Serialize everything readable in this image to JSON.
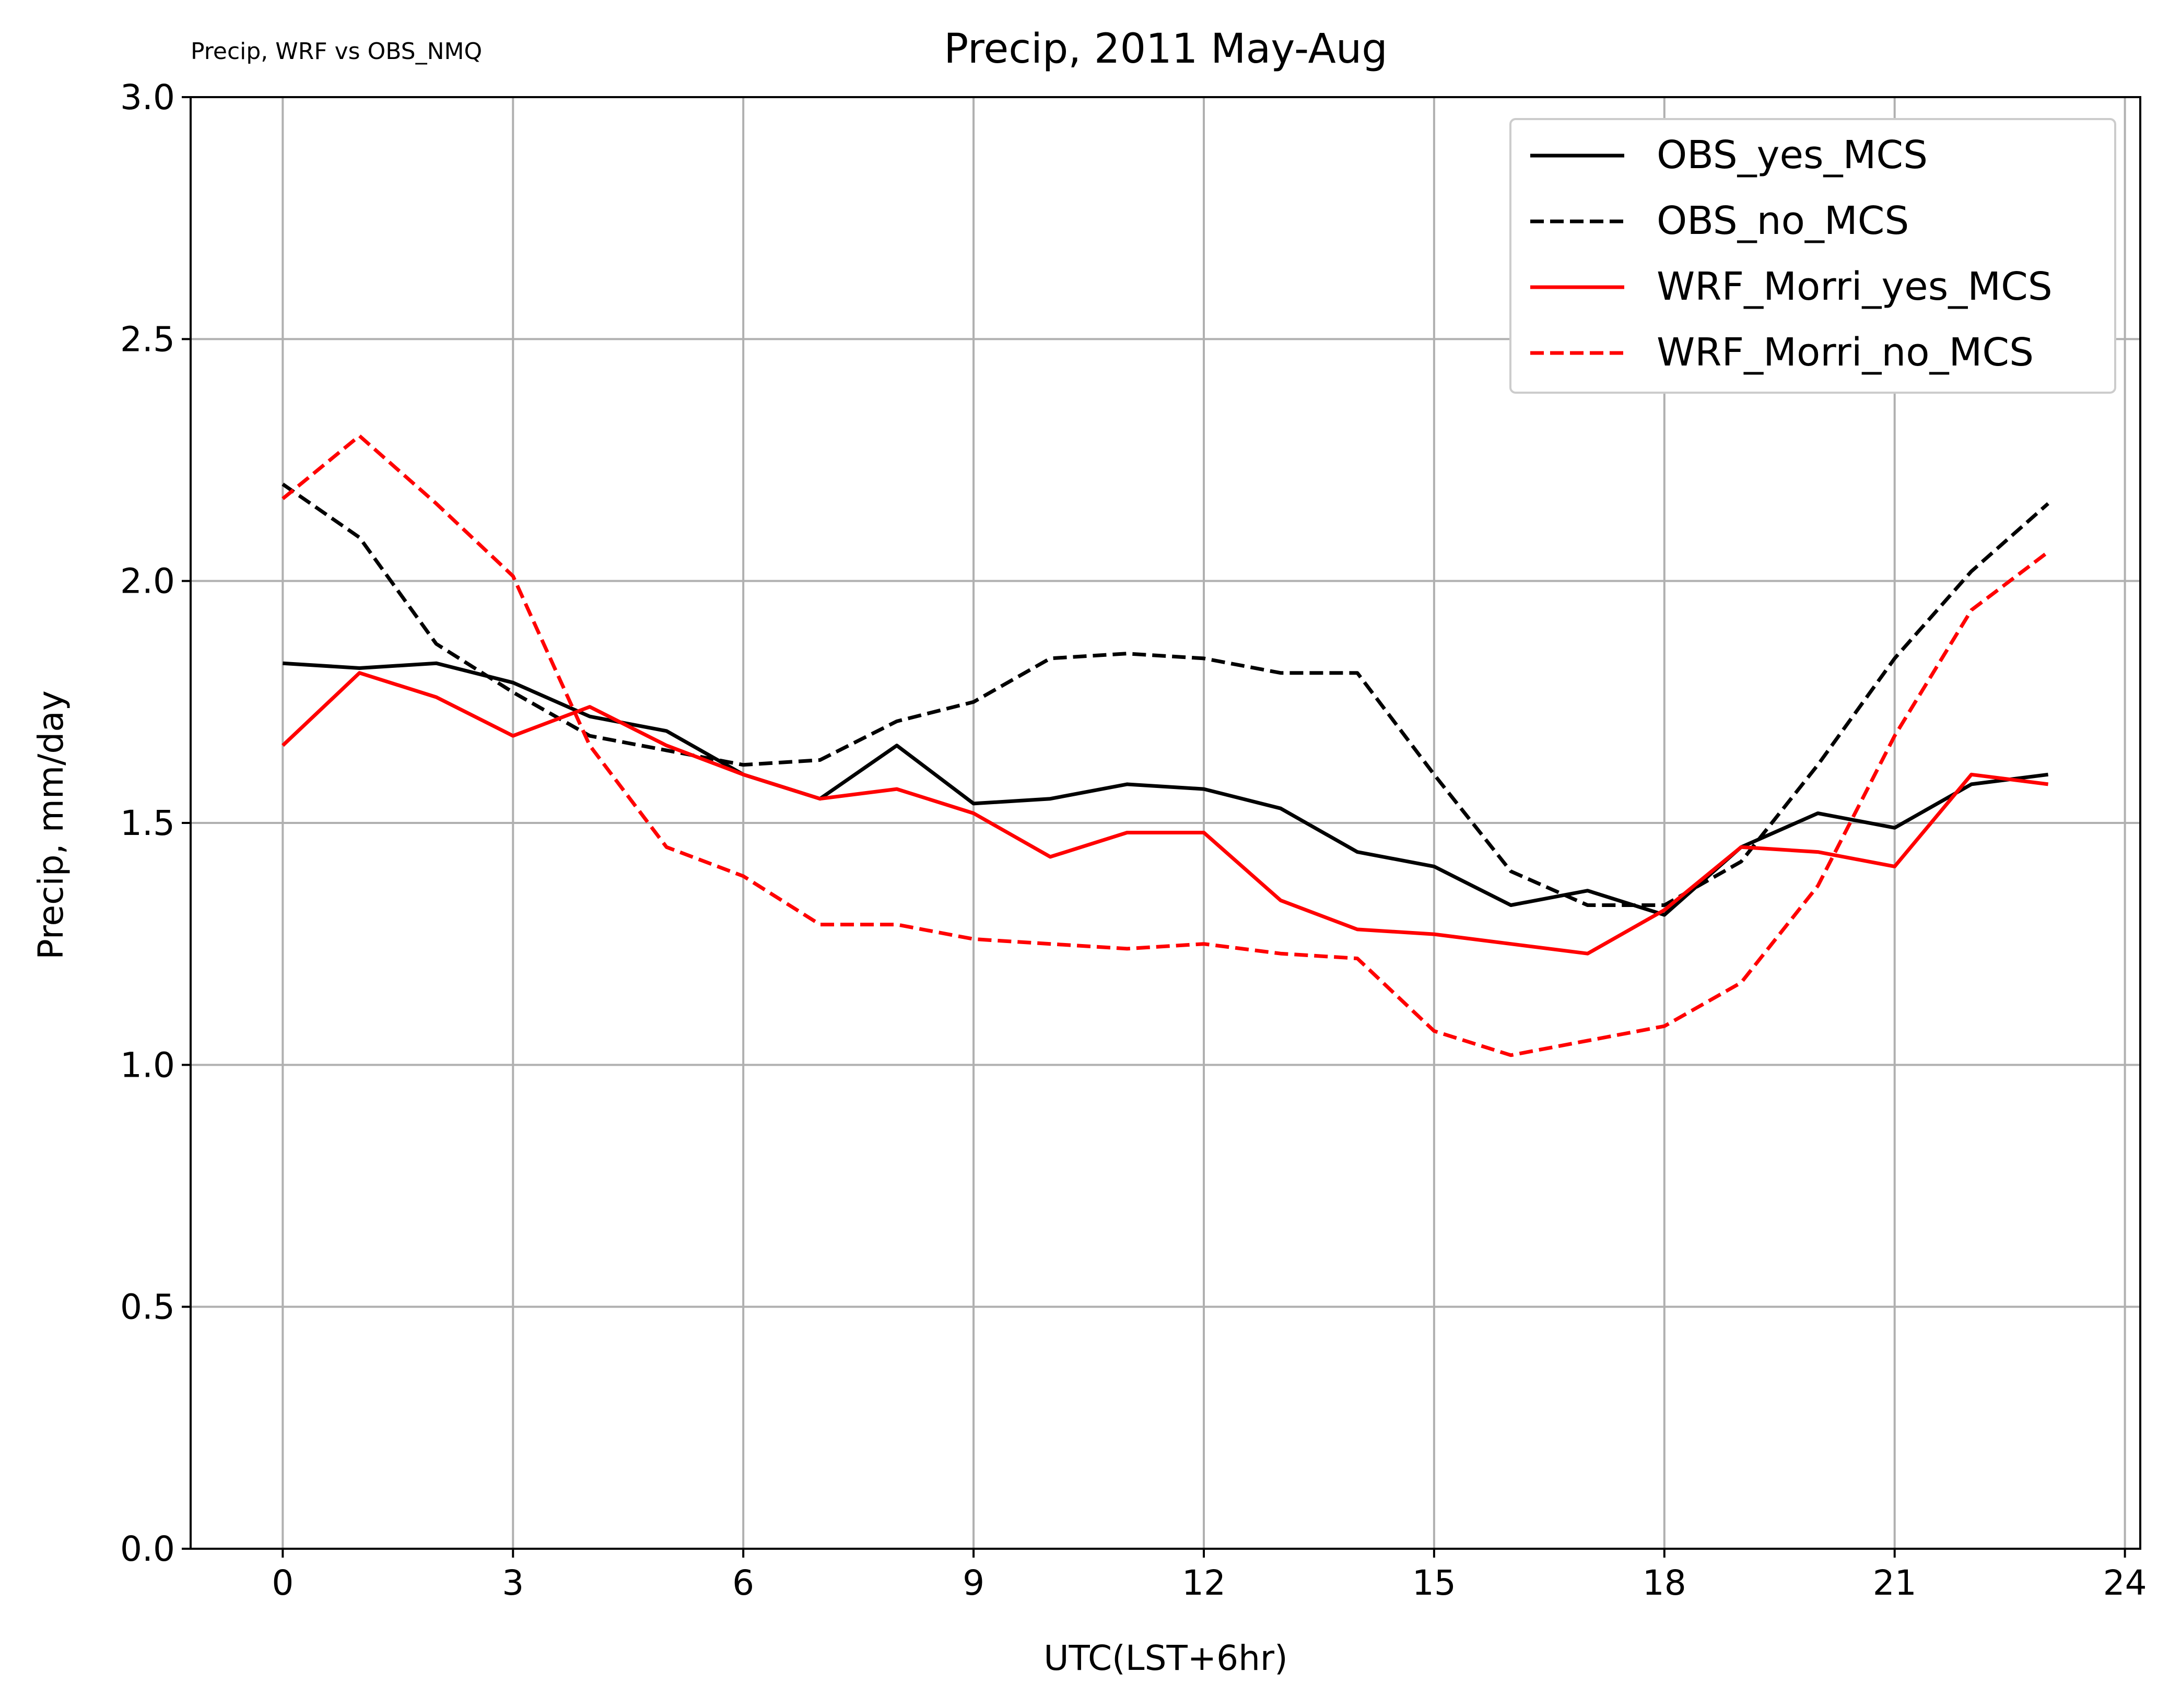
{
  "chart_data": {
    "type": "line",
    "title": "Precip, 2011 May-Aug",
    "subtitle": "Precip, WRF vs OBS_NMQ",
    "xlabel": "UTC(LST+6hr)",
    "ylabel": "Precip, mm/day",
    "xlim": [
      -1.2,
      24.2
    ],
    "ylim": [
      0.0,
      3.0
    ],
    "xticks": [
      0,
      3,
      6,
      9,
      12,
      15,
      18,
      21,
      24
    ],
    "yticks": [
      0.0,
      0.5,
      1.0,
      1.5,
      2.0,
      2.5,
      3.0
    ],
    "ytick_labels": [
      "0.0",
      "0.5",
      "1.0",
      "1.5",
      "2.0",
      "2.5",
      "3.0"
    ],
    "grid": true,
    "legend_position": "top-right",
    "x": [
      0,
      1,
      2,
      3,
      4,
      5,
      6,
      7,
      8,
      9,
      10,
      11,
      12,
      13,
      14,
      15,
      16,
      17,
      18,
      19,
      20,
      21,
      22,
      23
    ],
    "series": [
      {
        "name": "OBS_yes_MCS",
        "color": "#000000",
        "dashed": false,
        "values": [
          1.83,
          1.82,
          1.83,
          1.79,
          1.72,
          1.69,
          1.6,
          1.55,
          1.66,
          1.54,
          1.55,
          1.58,
          1.57,
          1.53,
          1.44,
          1.41,
          1.33,
          1.36,
          1.31,
          1.45,
          1.52,
          1.49,
          1.58,
          1.6
        ]
      },
      {
        "name": "OBS_no_MCS",
        "color": "#000000",
        "dashed": true,
        "values": [
          2.2,
          2.09,
          1.87,
          1.77,
          1.68,
          1.65,
          1.62,
          1.63,
          1.71,
          1.75,
          1.84,
          1.85,
          1.84,
          1.81,
          1.81,
          1.6,
          1.4,
          1.33,
          1.33,
          1.42,
          1.62,
          1.84,
          2.02,
          2.16
        ]
      },
      {
        "name": "WRF_Morri_yes_MCS",
        "color": "#ff0000",
        "dashed": false,
        "values": [
          1.66,
          1.81,
          1.76,
          1.68,
          1.74,
          1.66,
          1.6,
          1.55,
          1.57,
          1.52,
          1.43,
          1.48,
          1.48,
          1.34,
          1.28,
          1.27,
          1.25,
          1.23,
          1.32,
          1.45,
          1.44,
          1.41,
          1.6,
          1.58
        ]
      },
      {
        "name": "WRF_Morri_no_MCS",
        "color": "#ff0000",
        "dashed": true,
        "values": [
          2.17,
          2.3,
          2.16,
          2.01,
          1.66,
          1.45,
          1.39,
          1.29,
          1.29,
          1.26,
          1.25,
          1.24,
          1.25,
          1.23,
          1.22,
          1.07,
          1.02,
          1.05,
          1.08,
          1.17,
          1.37,
          1.68,
          1.94,
          2.06
        ]
      }
    ]
  }
}
